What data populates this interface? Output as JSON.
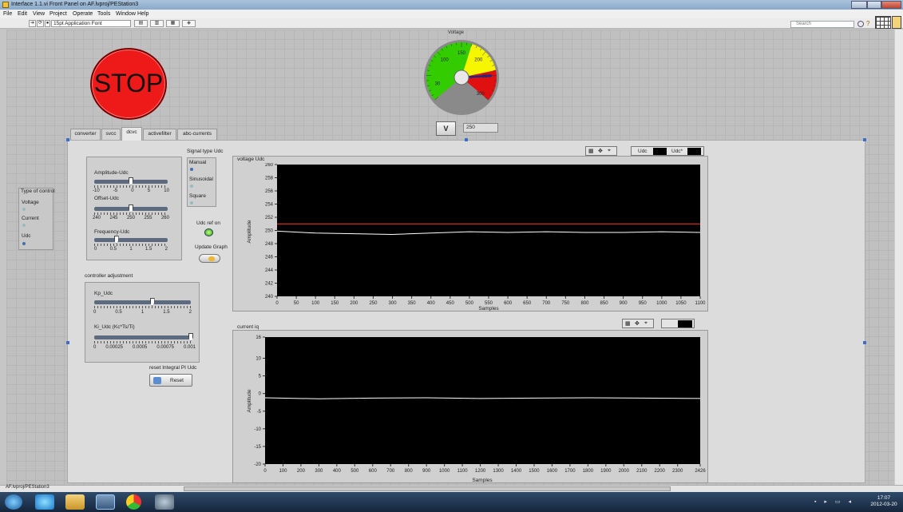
{
  "window": {
    "title": "Interface 1.1.vi Front Panel on AF.lvproj/PEStation3"
  },
  "menu": [
    "File",
    "Edit",
    "View",
    "Project",
    "Operate",
    "Tools",
    "Window",
    "Help"
  ],
  "toolbar": {
    "font": "15pt Application Font",
    "search_placeholder": "Search"
  },
  "stop_label": "STOP",
  "gauge": {
    "title": "Voltage",
    "ticks": [
      "30",
      "100",
      "150",
      "200",
      "250",
      "300"
    ],
    "value": 250,
    "min": 0,
    "max": 300,
    "button": "V",
    "display": "250",
    "colors": {
      "low": "#33cc00",
      "mid": "#f6f600",
      "high": "#e01010"
    }
  },
  "tabs": [
    "converter",
    "svcc",
    "dcvc",
    "activefilter",
    "abc-currents"
  ],
  "active_tab": "dcvc",
  "type_of_control": {
    "label": "Type of control",
    "options": [
      "Voltage",
      "Current",
      "Udc"
    ],
    "selected": "Udc"
  },
  "sliders": {
    "amplitude": {
      "label": "Amplitude-Udc",
      "scale": [
        "-10",
        "-5",
        "0",
        "5",
        "10"
      ],
      "value": 0
    },
    "offset": {
      "label": "Offset-Udc",
      "scale": [
        "240",
        "245",
        "250",
        "255",
        "260"
      ],
      "value": 250
    },
    "frequency": {
      "label": "Frequency-Udc",
      "scale": [
        "0",
        "0.5",
        "1",
        "1.5",
        "2"
      ],
      "value": 0.6
    }
  },
  "signal_type": {
    "label": "Signal type Udc",
    "options": [
      "Manual",
      "Sinusoidal",
      "Square"
    ],
    "selected": "Manual"
  },
  "udc_ref_on": "Udc ref on",
  "update_graph": "Update Graph",
  "controller": {
    "label": "controller adjustment",
    "kp": {
      "label": "Kp_Udc",
      "scale": [
        "0",
        "0.5",
        "1",
        "1.5",
        "2"
      ],
      "value": 1.2
    },
    "ki": {
      "label": "Ki_Udc (Kc*Ts/Ti)",
      "scale": [
        "0",
        "0.00025",
        "0.0005",
        "0.00075",
        "0.001"
      ],
      "value": 0.001
    }
  },
  "reset": {
    "label": "reset Integral PI Udc",
    "button": "Reset"
  },
  "graph_voltage": {
    "title": "voltage Udc",
    "legend": [
      "Udc",
      "Udc*"
    ],
    "ylabel": "Amplitude",
    "xlabel": "Samples"
  },
  "graph_current": {
    "title": "current iq",
    "ylabel": "Amplitude",
    "xlabel": "Samples"
  },
  "chart_data": [
    {
      "type": "line",
      "title": "voltage Udc",
      "xlabel": "Samples",
      "ylabel": "Amplitude",
      "xlim": [
        0,
        1100
      ],
      "ylim": [
        240,
        260
      ],
      "xticks": [
        "0",
        "50",
        "100",
        "150",
        "200",
        "250",
        "300",
        "350",
        "400",
        "450",
        "500",
        "550",
        "600",
        "650",
        "700",
        "750",
        "800",
        "850",
        "900",
        "950",
        "1000",
        "1050",
        "1100"
      ],
      "yticks": [
        "240",
        "242",
        "244",
        "246",
        "248",
        "250",
        "252",
        "254",
        "256",
        "258",
        "260"
      ],
      "series": [
        {
          "name": "Udc",
          "color": "#ffffff",
          "x": [
            0,
            100,
            200,
            300,
            400,
            500,
            600,
            700,
            800,
            900,
            1000,
            1100
          ],
          "y": [
            249.9,
            249.6,
            249.5,
            249.4,
            249.6,
            249.8,
            249.7,
            249.8,
            249.7,
            249.7,
            249.8,
            249.7
          ]
        },
        {
          "name": "Udc*",
          "color": "#ff3b1a",
          "x": [
            0,
            1100
          ],
          "y": [
            251,
            251
          ]
        }
      ]
    },
    {
      "type": "line",
      "title": "current iq",
      "xlabel": "Samples",
      "ylabel": "Amplitude",
      "xlim": [
        0,
        2426
      ],
      "ylim": [
        -20,
        16
      ],
      "xticks": [
        "0",
        "100",
        "200",
        "300",
        "400",
        "500",
        "600",
        "700",
        "800",
        "900",
        "1000",
        "1100",
        "1200",
        "1300",
        "1400",
        "1500",
        "1600",
        "1700",
        "1800",
        "1900",
        "2000",
        "2100",
        "2200",
        "2300",
        "2426"
      ],
      "yticks": [
        "-20",
        "-15",
        "-10",
        "-5",
        "0",
        "5",
        "10",
        "16"
      ],
      "series": [
        {
          "color": "#ffffff",
          "x": [
            0,
            300,
            600,
            900,
            1200,
            1500,
            1800,
            2100,
            2426
          ],
          "y": [
            -1.2,
            -1.5,
            -1.3,
            -1.2,
            -1.4,
            -1.3,
            -1.2,
            -1.3,
            -1.4
          ]
        }
      ]
    }
  ],
  "status_context": "AF.lvproj/PEStation3",
  "clock": {
    "time": "17:07",
    "date": "2012-03-20"
  }
}
